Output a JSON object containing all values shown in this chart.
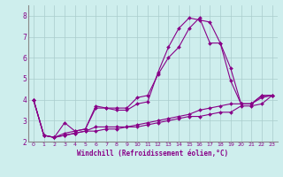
{
  "xlabel": "Windchill (Refroidissement éolien,°C)",
  "bg_color": "#ceeeed",
  "line_color": "#880088",
  "grid_color": "#aacccc",
  "series": [
    [
      0,
      4.0,
      1,
      2.3,
      2,
      2.2,
      3,
      2.4,
      4,
      2.5,
      5,
      2.6,
      6,
      3.6,
      7,
      3.6,
      8,
      3.6,
      9,
      3.6,
      10,
      4.1,
      11,
      4.2,
      12,
      5.2,
      13,
      6.0,
      14,
      6.5,
      15,
      7.4,
      16,
      7.9,
      17,
      6.7,
      18,
      6.7,
      19,
      5.5,
      20,
      3.8,
      21,
      3.8,
      22,
      4.2,
      23,
      4.2
    ],
    [
      0,
      4.0,
      1,
      2.3,
      2,
      2.2,
      3,
      2.9,
      4,
      2.5,
      5,
      2.6,
      6,
      3.7,
      7,
      3.6,
      8,
      3.5,
      9,
      3.5,
      10,
      3.8,
      11,
      3.9,
      12,
      5.3,
      13,
      6.5,
      14,
      7.4,
      15,
      7.9,
      16,
      7.8,
      17,
      7.7,
      18,
      6.7,
      19,
      4.9,
      20,
      3.8,
      21,
      3.8,
      22,
      4.2,
      23,
      4.2
    ],
    [
      0,
      4.0,
      1,
      2.3,
      2,
      2.2,
      3,
      2.3,
      4,
      2.4,
      5,
      2.5,
      6,
      2.7,
      7,
      2.7,
      8,
      2.7,
      9,
      2.7,
      10,
      2.8,
      11,
      2.9,
      12,
      3.0,
      13,
      3.1,
      14,
      3.2,
      15,
      3.3,
      16,
      3.5,
      17,
      3.6,
      18,
      3.7,
      19,
      3.8,
      20,
      3.8,
      21,
      3.8,
      22,
      4.1,
      23,
      4.2
    ],
    [
      0,
      4.0,
      1,
      2.3,
      2,
      2.2,
      3,
      2.3,
      4,
      2.4,
      5,
      2.5,
      6,
      2.5,
      7,
      2.6,
      8,
      2.6,
      9,
      2.7,
      10,
      2.7,
      11,
      2.8,
      12,
      2.9,
      13,
      3.0,
      14,
      3.1,
      15,
      3.2,
      16,
      3.2,
      17,
      3.3,
      18,
      3.4,
      19,
      3.4,
      20,
      3.7,
      21,
      3.7,
      22,
      3.8,
      23,
      4.2
    ]
  ],
  "xlim": [
    -0.5,
    23.5
  ],
  "ylim": [
    2.0,
    8.5
  ],
  "yticks": [
    2,
    3,
    4,
    5,
    6,
    7,
    8
  ],
  "xticks": [
    0,
    1,
    2,
    3,
    4,
    5,
    6,
    7,
    8,
    9,
    10,
    11,
    12,
    13,
    14,
    15,
    16,
    17,
    18,
    19,
    20,
    21,
    22,
    23
  ],
  "xtick_fontsize": 4.5,
  "ytick_fontsize": 5.5,
  "xlabel_fontsize": 5.5,
  "linewidth": 0.8,
  "markersize": 2.0
}
